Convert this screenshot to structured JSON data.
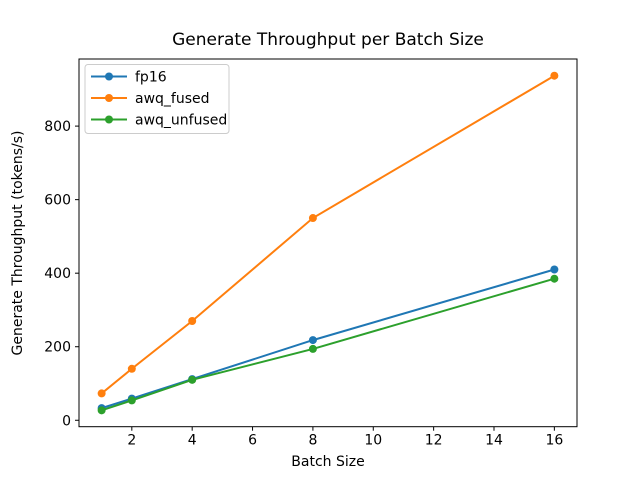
{
  "window": {
    "background": "#ffffff"
  },
  "chart_data": {
    "type": "line",
    "title": "Generate Throughput per Batch Size",
    "xlabel": "Batch Size",
    "ylabel": "Generate Throughput (tokens/s)",
    "x": [
      1,
      2,
      4,
      8,
      16
    ],
    "series": [
      {
        "name": "fp16",
        "color": "#1f77b4",
        "values": [
          33,
          59,
          112,
          218,
          410
        ]
      },
      {
        "name": "awq_fused",
        "color": "#ff7f0e",
        "values": [
          73,
          140,
          270,
          550,
          937
        ]
      },
      {
        "name": "awq_unfused",
        "color": "#2ca02c",
        "values": [
          27,
          54,
          110,
          194,
          385
        ]
      }
    ],
    "xlim": [
      0.25,
      16.75
    ],
    "ylim": [
      -17.5,
      982.5
    ],
    "xticks": [
      2,
      4,
      6,
      8,
      10,
      12,
      14,
      16
    ],
    "yticks": [
      0,
      200,
      400,
      600,
      800
    ],
    "grid": false,
    "legend_position": "upper left",
    "marker": "o",
    "line_width": 2,
    "marker_radius": 4,
    "spine_color": "#000000",
    "legend_border_color": "#cccccc"
  }
}
